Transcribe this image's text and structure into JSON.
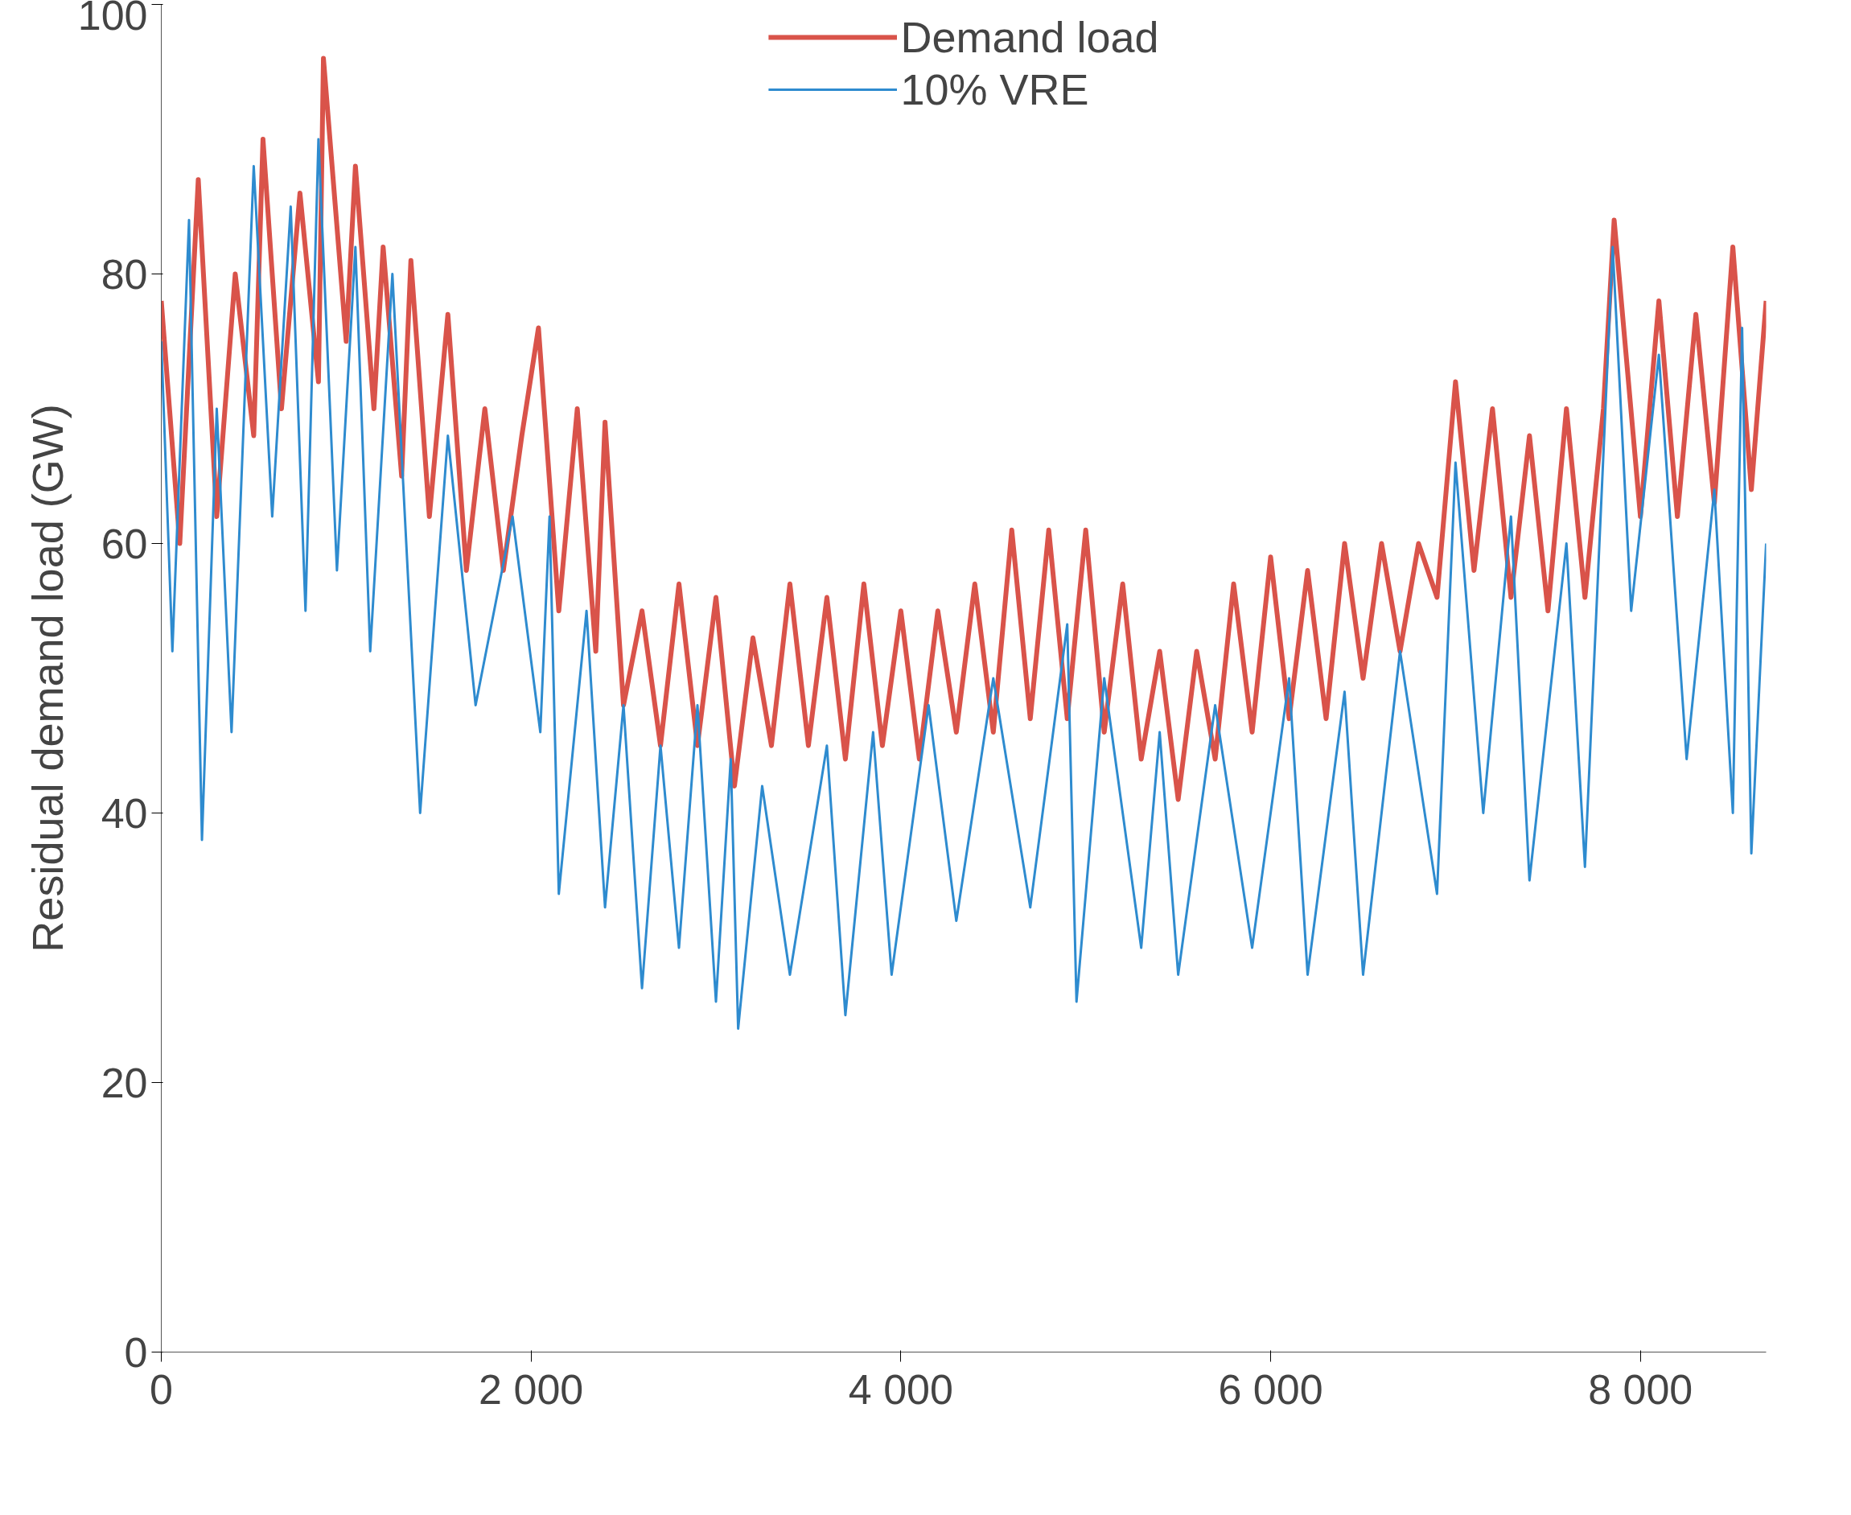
{
  "chart_data": {
    "type": "line",
    "ylabel": "Residual demand load (GW)",
    "xlim": [
      0,
      8680
    ],
    "ylim": [
      0,
      100
    ],
    "xticks": [
      0,
      {
        "value": 2000,
        "label": "2 000"
      },
      {
        "value": 4000,
        "label": "4 000"
      },
      {
        "value": 6000,
        "label": "6 000"
      },
      {
        "value": 8000,
        "label": "8 000"
      }
    ],
    "yticks": [
      0,
      20,
      40,
      60,
      80,
      100
    ],
    "grid": false,
    "legend": "top",
    "line_style": "solid",
    "marker": "none",
    "series": [
      {
        "name": "Demand load",
        "color": "#d9534a",
        "x": [
          0,
          100,
          200,
          300,
          400,
          500,
          550,
          650,
          750,
          850,
          877,
          1000,
          1050,
          1150,
          1200,
          1300,
          1350,
          1450,
          1550,
          1650,
          1750,
          1850,
          1950,
          2040,
          2150,
          2250,
          2350,
          2400,
          2500,
          2600,
          2700,
          2800,
          2900,
          3000,
          3100,
          3200,
          3300,
          3400,
          3500,
          3600,
          3700,
          3800,
          3900,
          4000,
          4100,
          4200,
          4300,
          4400,
          4500,
          4600,
          4700,
          4800,
          4900,
          5000,
          5100,
          5200,
          5300,
          5400,
          5500,
          5600,
          5700,
          5800,
          5900,
          6000,
          6100,
          6200,
          6300,
          6400,
          6500,
          6600,
          6700,
          6800,
          6900,
          7000,
          7100,
          7200,
          7300,
          7400,
          7500,
          7600,
          7700,
          7800,
          7858,
          8000,
          8100,
          8200,
          8300,
          8400,
          8500,
          8600,
          8680
        ],
        "values": [
          78,
          60,
          87,
          62,
          80,
          68,
          90,
          70,
          86,
          72,
          96,
          75,
          88,
          70,
          82,
          65,
          81,
          62,
          77,
          58,
          70,
          58,
          68,
          76,
          55,
          70,
          52,
          69,
          48,
          55,
          45,
          57,
          45,
          56,
          42,
          53,
          45,
          57,
          45,
          56,
          44,
          57,
          45,
          55,
          44,
          55,
          46,
          57,
          46,
          61,
          47,
          61,
          47,
          61,
          46,
          57,
          44,
          52,
          41,
          52,
          44,
          57,
          46,
          59,
          47,
          58,
          47,
          60,
          50,
          60,
          52,
          60,
          56,
          72,
          58,
          70,
          56,
          68,
          55,
          70,
          56,
          70,
          84,
          62,
          78,
          62,
          77,
          63,
          82,
          64,
          78
        ]
      },
      {
        "name": "10% VRE",
        "color": "#2e8bcf",
        "x": [
          0,
          60,
          150,
          220,
          300,
          380,
          500,
          600,
          700,
          780,
          850,
          950,
          1050,
          1130,
          1250,
          1400,
          1550,
          1700,
          1900,
          2050,
          2100,
          2150,
          2300,
          2400,
          2500,
          2600,
          2700,
          2800,
          2900,
          3000,
          3080,
          3120,
          3250,
          3400,
          3600,
          3700,
          3850,
          3950,
          4150,
          4300,
          4500,
          4700,
          4900,
          4950,
          5100,
          5300,
          5400,
          5500,
          5700,
          5900,
          6100,
          6200,
          6400,
          6500,
          6700,
          6900,
          7000,
          7150,
          7300,
          7400,
          7600,
          7700,
          7850,
          7950,
          8100,
          8250,
          8400,
          8500,
          8550,
          8600,
          8680
        ],
        "values": [
          75,
          52,
          84,
          38,
          70,
          46,
          88,
          62,
          85,
          55,
          90,
          58,
          82,
          52,
          80,
          40,
          68,
          48,
          62,
          46,
          62,
          34,
          55,
          33,
          48,
          27,
          45,
          30,
          48,
          26,
          44,
          24,
          42,
          28,
          45,
          25,
          46,
          28,
          48,
          32,
          50,
          33,
          54,
          26,
          50,
          30,
          46,
          28,
          48,
          30,
          50,
          28,
          49,
          28,
          52,
          34,
          66,
          40,
          62,
          35,
          60,
          36,
          82,
          55,
          74,
          44,
          64,
          40,
          76,
          37,
          60
        ]
      }
    ]
  }
}
